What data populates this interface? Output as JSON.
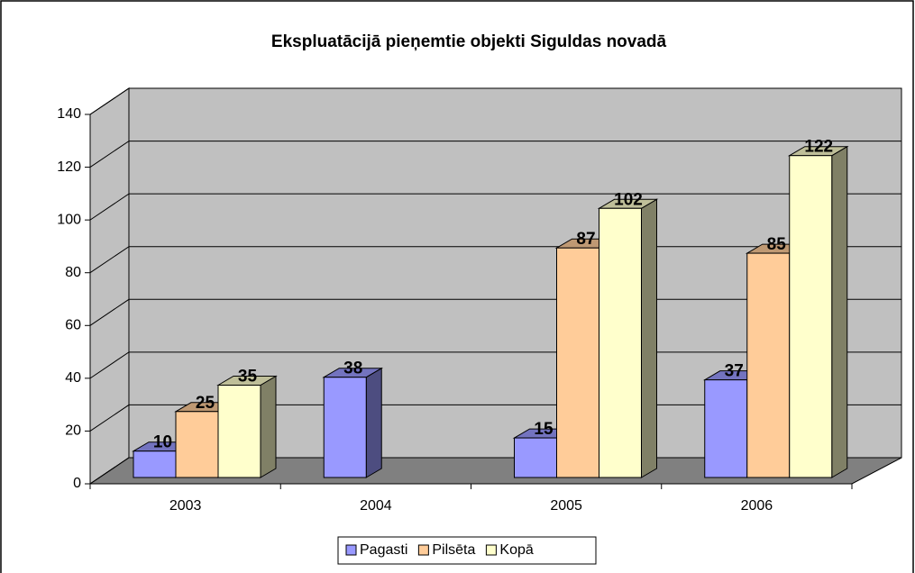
{
  "chart_data": {
    "type": "bar3d",
    "title": "Ekspluatācijā pieņemtie objekti Siguldas novadā",
    "categories": [
      "2003",
      "2004",
      "2005",
      "2006"
    ],
    "series": [
      {
        "name": "Pagasti",
        "color": "#9999ff",
        "values": [
          10,
          38,
          15,
          37
        ]
      },
      {
        "name": "Pilsēta",
        "color": "#ffcc99",
        "values": [
          25,
          null,
          87,
          85
        ]
      },
      {
        "name": "Kopā",
        "color": "#ffffcc",
        "values": [
          35,
          null,
          102,
          122
        ]
      }
    ],
    "ylim": [
      0,
      140
    ],
    "yticks": [
      0,
      20,
      40,
      60,
      80,
      100,
      120,
      140
    ],
    "grid": true,
    "legend": "bottom"
  }
}
